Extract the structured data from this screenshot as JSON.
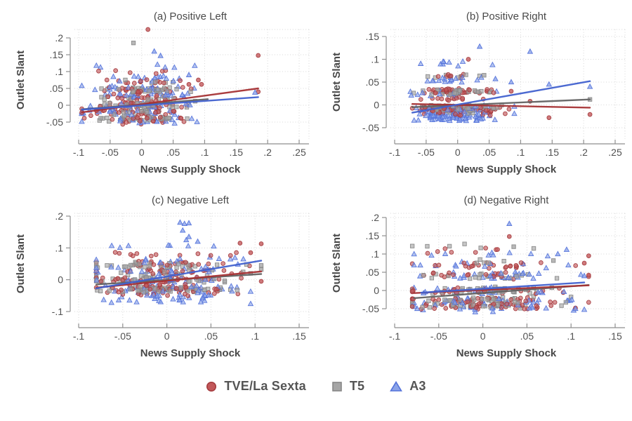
{
  "figure": {
    "background": "#ffffff",
    "text_color": "#4f4f4f",
    "grid_color": "#d2d2d2",
    "axis_color": "#8f8f8f"
  },
  "legend": {
    "position": "bottom-center",
    "items": [
      {
        "label": "TVE/La Sexta",
        "series": "tve",
        "marker": "circle"
      },
      {
        "label": "T5",
        "series": "t5",
        "marker": "square"
      },
      {
        "label": "A3",
        "series": "a3",
        "marker": "triangle"
      }
    ]
  },
  "series_styles": {
    "tve": {
      "name": "TVE/La Sexta",
      "marker": "circle",
      "fill": "#c2585a",
      "stroke": "#a43b3e",
      "line": "#a53134"
    },
    "t5": {
      "name": "T5",
      "marker": "square",
      "fill": "#a6a6a6",
      "stroke": "#878787",
      "line": "#636363"
    },
    "a3": {
      "name": "A3",
      "marker": "triangle",
      "fill": "#8ba3e8",
      "stroke": "#5372da",
      "line": "#4161cf"
    }
  },
  "chart_data": [
    {
      "id": "a",
      "type": "scatter",
      "title": "(a) Positive Left",
      "xlabel": "News Supply Shock",
      "ylabel": "Outlet Slant",
      "xlim": [
        -0.1,
        0.25
      ],
      "ylim": [
        -0.09,
        0.235
      ],
      "grid": true,
      "xticks": {
        "values": [
          -0.1,
          -0.05,
          0,
          0.05,
          0.1,
          0.15,
          0.2,
          0.25
        ],
        "labels": [
          "-.1",
          "-.05",
          "0",
          ".05",
          ".1",
          ".15",
          ".2",
          ".25"
        ]
      },
      "yticks": {
        "values": [
          0.2,
          0.15,
          0.1,
          0.05,
          0,
          -0.05
        ],
        "labels": [
          ".2",
          ".15",
          ".1",
          ".05",
          "0",
          "-.05"
        ]
      },
      "fit_lines": [
        {
          "series": "t5",
          "x1": -0.095,
          "y1": -0.012,
          "x2": 0.105,
          "y2": 0.018
        },
        {
          "series": "tve",
          "x1": -0.095,
          "y1": -0.021,
          "x2": 0.185,
          "y2": 0.05
        },
        {
          "series": "a3",
          "x1": -0.095,
          "y1": -0.013,
          "x2": 0.185,
          "y2": 0.024
        }
      ],
      "scatter": [
        {
          "series": "tve",
          "n": 150,
          "seed": 101,
          "x_mean": 0.002,
          "x_sd": 0.036,
          "x_min": -0.095,
          "x_max": 0.095,
          "jitter": 0.007,
          "y_bands": [
            [
              0.1,
              3
            ],
            [
              0.07,
              9
            ],
            [
              0.045,
              14
            ],
            [
              0.025,
              12
            ],
            [
              0.005,
              20
            ],
            [
              -0.015,
              16
            ],
            [
              -0.032,
              16
            ],
            [
              -0.048,
              12
            ]
          ]
        },
        {
          "series": "t5",
          "n": 125,
          "seed": 102,
          "x_mean": 0.0,
          "x_sd": 0.033,
          "x_min": -0.09,
          "x_max": 0.09,
          "jitter": 0.006,
          "y_bands": [
            [
              0.07,
              4
            ],
            [
              0.045,
              18
            ],
            [
              0.022,
              10
            ],
            [
              0.0,
              22
            ],
            [
              -0.02,
              12
            ],
            [
              -0.04,
              26
            ]
          ]
        },
        {
          "series": "a3",
          "n": 120,
          "seed": 103,
          "x_mean": -0.002,
          "x_sd": 0.04,
          "x_min": -0.095,
          "x_max": 0.105,
          "jitter": 0.007,
          "y_bands": [
            [
              0.115,
              4
            ],
            [
              0.08,
              7
            ],
            [
              0.05,
              11
            ],
            [
              0.03,
              16
            ],
            [
              0.0,
              18
            ],
            [
              -0.02,
              18
            ],
            [
              -0.045,
              14
            ]
          ]
        }
      ],
      "extra_points": [
        {
          "series": "tve",
          "x": 0.01,
          "y": 0.225
        },
        {
          "series": "tve",
          "x": 0.185,
          "y": 0.148
        },
        {
          "series": "tve",
          "x": 0.185,
          "y": 0.04
        },
        {
          "series": "tve",
          "x": 0.09,
          "y": 0.075
        },
        {
          "series": "tve",
          "x": 0.095,
          "y": 0.062
        },
        {
          "series": "tve",
          "x": 0.075,
          "y": 0.062
        },
        {
          "series": "t5",
          "x": -0.013,
          "y": 0.185
        },
        {
          "series": "t5",
          "x": 0.085,
          "y": 0.012
        },
        {
          "series": "a3",
          "x": 0.02,
          "y": 0.16
        },
        {
          "series": "a3",
          "x": 0.03,
          "y": 0.147
        },
        {
          "series": "a3",
          "x": 0.18,
          "y": 0.038
        },
        {
          "series": "a3",
          "x": 0.075,
          "y": 0.09
        }
      ]
    },
    {
      "id": "b",
      "type": "scatter",
      "title": "(b) Positive Right",
      "xlabel": "News Supply Shock",
      "ylabel": "Outlet Slant",
      "xlim": [
        -0.1,
        0.25
      ],
      "ylim": [
        -0.07,
        0.16
      ],
      "grid": true,
      "xticks": {
        "values": [
          -0.1,
          -0.05,
          0,
          0.05,
          0.1,
          0.15,
          0.2,
          0.25
        ],
        "labels": [
          "-.1",
          "-.05",
          "0",
          ".05",
          ".1",
          ".15",
          ".2",
          ".25"
        ]
      },
      "yticks": {
        "values": [
          0.15,
          0.1,
          0.05,
          0,
          -0.05
        ],
        "labels": [
          ".15",
          ".1",
          ".05",
          "0",
          "-.05"
        ]
      },
      "fit_lines": [
        {
          "series": "t5",
          "x1": -0.072,
          "y1": -0.005,
          "x2": 0.21,
          "y2": 0.012
        },
        {
          "series": "tve",
          "x1": -0.072,
          "y1": 0.002,
          "x2": 0.21,
          "y2": -0.006
        },
        {
          "series": "a3",
          "x1": -0.072,
          "y1": -0.017,
          "x2": 0.21,
          "y2": 0.052
        }
      ],
      "scatter": [
        {
          "series": "tve",
          "n": 150,
          "seed": 201,
          "x_mean": -0.005,
          "x_sd": 0.03,
          "x_min": -0.072,
          "x_max": 0.09,
          "jitter": 0.0045,
          "y_bands": [
            [
              0.062,
              7
            ],
            [
              0.03,
              26
            ],
            [
              0.012,
              5
            ],
            [
              -0.008,
              42
            ],
            [
              -0.018,
              14
            ]
          ]
        },
        {
          "series": "t5",
          "n": 115,
          "seed": 202,
          "x_mean": -0.005,
          "x_sd": 0.028,
          "x_min": -0.07,
          "x_max": 0.07,
          "jitter": 0.004,
          "y_bands": [
            [
              0.062,
              4
            ],
            [
              0.028,
              20
            ],
            [
              -0.005,
              34
            ],
            [
              -0.014,
              16
            ]
          ]
        },
        {
          "series": "a3",
          "n": 150,
          "seed": 203,
          "x_mean": -0.008,
          "x_sd": 0.032,
          "x_min": -0.075,
          "x_max": 0.09,
          "jitter": 0.005,
          "y_bands": [
            [
              0.09,
              4
            ],
            [
              0.055,
              9
            ],
            [
              0.025,
              11
            ],
            [
              -0.008,
              18
            ],
            [
              -0.022,
              28
            ],
            [
              -0.03,
              20
            ]
          ]
        }
      ],
      "extra_points": [
        {
          "series": "tve",
          "x": 0.017,
          "y": 0.1
        },
        {
          "series": "tve",
          "x": 0.115,
          "y": 0.008
        },
        {
          "series": "tve",
          "x": 0.145,
          "y": -0.028
        },
        {
          "series": "tve",
          "x": 0.21,
          "y": -0.021
        },
        {
          "series": "tve",
          "x": 0.085,
          "y": 0.03
        },
        {
          "series": "t5",
          "x": 0.042,
          "y": 0.065
        },
        {
          "series": "t5",
          "x": 0.21,
          "y": 0.012
        },
        {
          "series": "t5",
          "x": 0.057,
          "y": -0.007
        },
        {
          "series": "a3",
          "x": 0.035,
          "y": 0.128
        },
        {
          "series": "a3",
          "x": 0.115,
          "y": 0.117
        },
        {
          "series": "a3",
          "x": 0.21,
          "y": 0.04
        },
        {
          "series": "a3",
          "x": 0.085,
          "y": 0.05
        },
        {
          "series": "a3",
          "x": 0.145,
          "y": 0.045
        },
        {
          "series": "a3",
          "x": 0.06,
          "y": 0.057
        }
      ]
    },
    {
      "id": "c",
      "type": "scatter",
      "title": "(c) Negative Left",
      "xlabel": "News Supply Shock",
      "ylabel": "Outlet Slant",
      "xlim": [
        -0.1,
        0.15
      ],
      "ylim": [
        -0.105,
        0.2
      ],
      "grid": true,
      "xticks": {
        "values": [
          -0.1,
          -0.05,
          0,
          0.05,
          0.1,
          0.15
        ],
        "labels": [
          "-.1",
          "-.05",
          "0",
          ".05",
          ".1",
          ".15"
        ]
      },
      "yticks": {
        "values": [
          0.2,
          0.1,
          0,
          -0.1
        ],
        "labels": [
          ".2",
          ".1",
          "0",
          "-.1"
        ]
      },
      "fit_lines": [
        {
          "series": "t5",
          "x1": -0.08,
          "y1": -0.015,
          "x2": 0.107,
          "y2": 0.018
        },
        {
          "series": "tve",
          "x1": -0.08,
          "y1": -0.025,
          "x2": 0.107,
          "y2": 0.026
        },
        {
          "series": "a3",
          "x1": -0.08,
          "y1": -0.027,
          "x2": 0.107,
          "y2": 0.06
        }
      ],
      "scatter": [
        {
          "series": "tve",
          "n": 155,
          "seed": 301,
          "x_mean": -0.003,
          "x_sd": 0.04,
          "x_min": -0.08,
          "x_max": 0.1,
          "jitter": 0.008,
          "y_bands": [
            [
              0.08,
              8
            ],
            [
              0.05,
              13
            ],
            [
              0.025,
              13
            ],
            [
              0.0,
              20
            ],
            [
              -0.025,
              28
            ],
            [
              -0.042,
              14
            ]
          ]
        },
        {
          "series": "t5",
          "n": 130,
          "seed": 302,
          "x_mean": -0.005,
          "x_sd": 0.038,
          "x_min": -0.08,
          "x_max": 0.1,
          "jitter": 0.007,
          "y_bands": [
            [
              0.085,
              3
            ],
            [
              0.045,
              24
            ],
            [
              0.02,
              12
            ],
            [
              0.0,
              22
            ],
            [
              -0.03,
              30
            ]
          ]
        },
        {
          "series": "a3",
          "n": 140,
          "seed": 303,
          "x_mean": 0.0,
          "x_sd": 0.042,
          "x_min": -0.08,
          "x_max": 0.095,
          "jitter": 0.009,
          "y_bands": [
            [
              0.1,
              6
            ],
            [
              0.06,
              11
            ],
            [
              0.03,
              15
            ],
            [
              0.0,
              17
            ],
            [
              -0.03,
              22
            ],
            [
              -0.055,
              16
            ],
            [
              -0.07,
              7
            ]
          ]
        }
      ],
      "extra_points": [
        {
          "series": "tve",
          "x": 0.083,
          "y": 0.115
        },
        {
          "series": "tve",
          "x": 0.107,
          "y": 0.113
        },
        {
          "series": "tve",
          "x": 0.095,
          "y": 0.085
        },
        {
          "series": "tve",
          "x": 0.107,
          "y": -0.005
        },
        {
          "series": "t5",
          "x": 0.107,
          "y": 0.045
        },
        {
          "series": "t5",
          "x": 0.107,
          "y": 0.032
        },
        {
          "series": "t5",
          "x": 0.095,
          "y": 0.02
        },
        {
          "series": "a3",
          "x": 0.015,
          "y": 0.18
        },
        {
          "series": "a3",
          "x": 0.02,
          "y": 0.176
        },
        {
          "series": "a3",
          "x": 0.025,
          "y": 0.178
        },
        {
          "series": "a3",
          "x": 0.018,
          "y": 0.155
        },
        {
          "series": "a3",
          "x": 0.025,
          "y": 0.135
        },
        {
          "series": "a3",
          "x": 0.022,
          "y": 0.125
        },
        {
          "series": "a3",
          "x": 0.035,
          "y": 0.12
        }
      ]
    },
    {
      "id": "d",
      "type": "scatter",
      "title": "(d) Negative Right",
      "xlabel": "News Supply Shock",
      "ylabel": "Outlet Slant",
      "xlim": [
        -0.1,
        0.15
      ],
      "ylim": [
        -0.08,
        0.21
      ],
      "grid": true,
      "xticks": {
        "values": [
          -0.1,
          -0.05,
          0,
          0.05,
          0.1,
          0.15
        ],
        "labels": [
          "-.1",
          "-.05",
          "0",
          ".05",
          ".1",
          ".15"
        ]
      },
      "yticks": {
        "values": [
          0.2,
          0.15,
          0.1,
          0.05,
          0,
          -0.05
        ],
        "labels": [
          ".2",
          ".15",
          ".1",
          ".05",
          "0",
          "-.05"
        ]
      },
      "fit_lines": [
        {
          "series": "t5",
          "x1": -0.078,
          "y1": -0.021,
          "x2": 0.12,
          "y2": 0.015
        },
        {
          "series": "tve",
          "x1": -0.078,
          "y1": -0.007,
          "x2": 0.12,
          "y2": 0.014
        },
        {
          "series": "a3",
          "x1": -0.07,
          "y1": -0.006,
          "x2": 0.115,
          "y2": 0.022
        }
      ],
      "scatter": [
        {
          "series": "tve",
          "n": 160,
          "seed": 401,
          "x_mean": 0.0,
          "x_sd": 0.045,
          "x_min": -0.08,
          "x_max": 0.12,
          "jitter": 0.007,
          "y_bands": [
            [
              0.11,
              5
            ],
            [
              0.07,
              14
            ],
            [
              0.04,
              18
            ],
            [
              0.0,
              20
            ],
            [
              -0.028,
              22
            ],
            [
              -0.045,
              21
            ]
          ]
        },
        {
          "series": "t5",
          "n": 130,
          "seed": 402,
          "x_mean": -0.005,
          "x_sd": 0.04,
          "x_min": -0.08,
          "x_max": 0.1,
          "jitter": 0.007,
          "y_bands": [
            [
              0.12,
              3
            ],
            [
              0.08,
              7
            ],
            [
              0.04,
              16
            ],
            [
              0.0,
              24
            ],
            [
              -0.025,
              24
            ],
            [
              -0.04,
              24
            ]
          ]
        },
        {
          "series": "a3",
          "n": 130,
          "seed": 403,
          "x_mean": 0.0,
          "x_sd": 0.045,
          "x_min": -0.078,
          "x_max": 0.115,
          "jitter": 0.008,
          "y_bands": [
            [
              0.1,
              4
            ],
            [
              0.07,
              10
            ],
            [
              0.04,
              18
            ],
            [
              0.0,
              22
            ],
            [
              -0.03,
              25
            ],
            [
              -0.05,
              15
            ]
          ]
        }
      ],
      "extra_points": [
        {
          "series": "tve",
          "x": 0.03,
          "y": 0.148
        },
        {
          "series": "tve",
          "x": 0.12,
          "y": 0.095
        },
        {
          "series": "tve",
          "x": 0.115,
          "y": 0.075
        },
        {
          "series": "tve",
          "x": 0.12,
          "y": 0.042
        },
        {
          "series": "tve",
          "x": 0.105,
          "y": -0.048
        },
        {
          "series": "t5",
          "x": 0.035,
          "y": 0.12
        },
        {
          "series": "t5",
          "x": 0.08,
          "y": 0.082
        },
        {
          "series": "a3",
          "x": 0.03,
          "y": 0.183
        },
        {
          "series": "a3",
          "x": 0.095,
          "y": 0.112
        },
        {
          "series": "a3",
          "x": 0.085,
          "y": 0.1
        },
        {
          "series": "a3",
          "x": 0.115,
          "y": 0.04
        },
        {
          "series": "a3",
          "x": 0.105,
          "y": -0.05
        }
      ]
    }
  ]
}
